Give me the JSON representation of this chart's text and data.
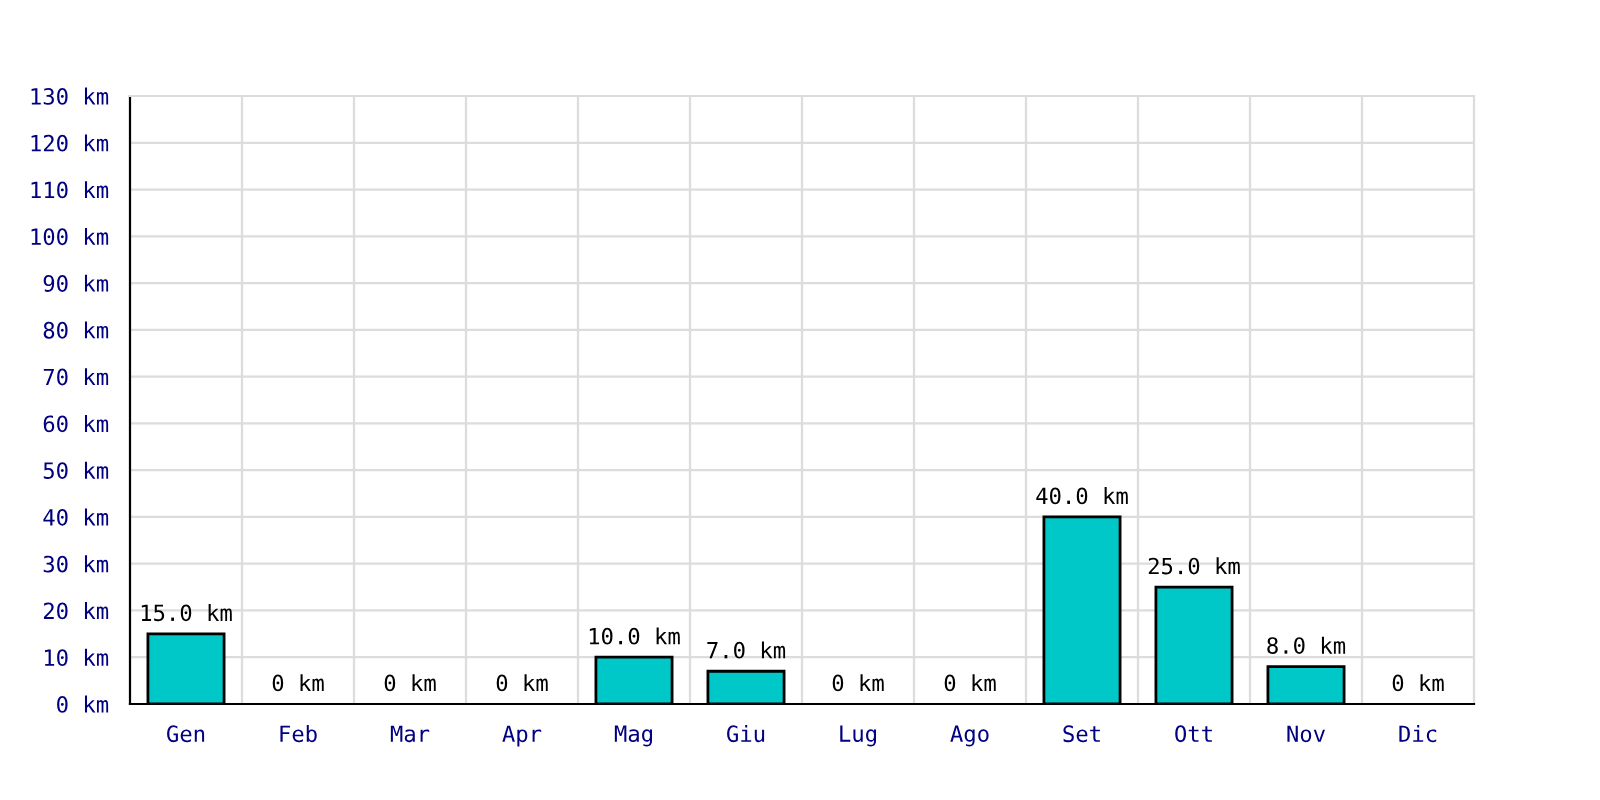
{
  "chart_data": {
    "type": "bar",
    "categories": [
      "Gen",
      "Feb",
      "Mar",
      "Apr",
      "Mag",
      "Giu",
      "Lug",
      "Ago",
      "Set",
      "Ott",
      "Nov",
      "Dic"
    ],
    "values": [
      15,
      0,
      0,
      0,
      10,
      7,
      0,
      0,
      40,
      25,
      8,
      0
    ],
    "value_labels": [
      "15.0 km",
      "0 km",
      "0 km",
      "0 km",
      "10.0 km",
      "7.0 km",
      "0 km",
      "0 km",
      "40.0 km",
      "25.0 km",
      "8.0 km",
      "0 km"
    ],
    "color": "#00c8c8",
    "ylim": [
      0,
      130
    ],
    "yticks": [
      {
        "value": 0,
        "label": "0 km"
      },
      {
        "value": 10,
        "label": "10 km"
      },
      {
        "value": 20,
        "label": "20 km"
      },
      {
        "value": 30,
        "label": "30 km"
      },
      {
        "value": 40,
        "label": "40 km"
      },
      {
        "value": 50,
        "label": "50 km"
      },
      {
        "value": 60,
        "label": "60 km"
      },
      {
        "value": 70,
        "label": "70 km"
      },
      {
        "value": 80,
        "label": "80 km"
      },
      {
        "value": 90,
        "label": "90 km"
      },
      {
        "value": 100,
        "label": "100 km"
      },
      {
        "value": 110,
        "label": "110 km"
      },
      {
        "value": 120,
        "label": "120 km"
      },
      {
        "value": 130,
        "label": "130 km"
      }
    ],
    "grid": true,
    "legend": false
  }
}
